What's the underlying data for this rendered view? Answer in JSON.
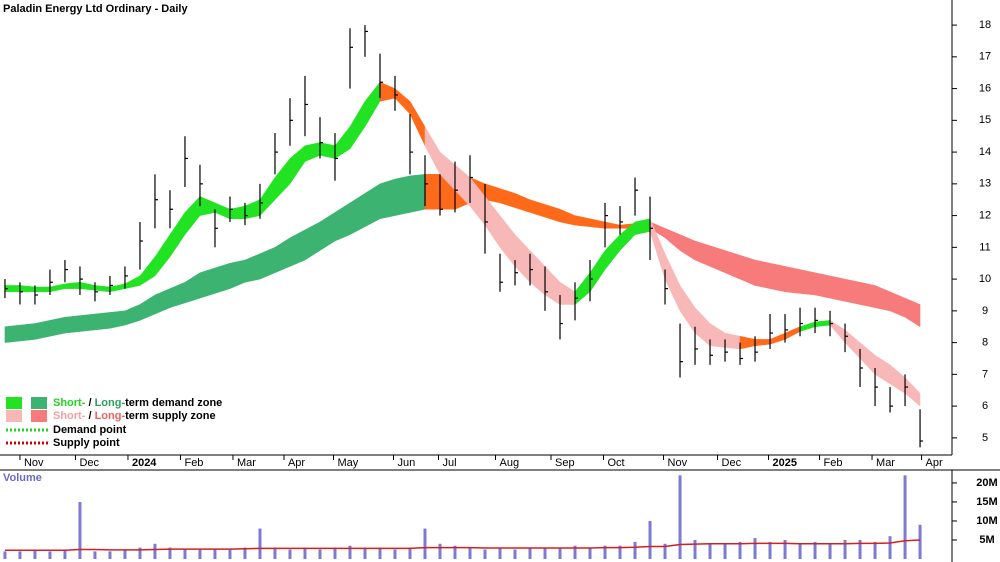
{
  "chart_data": {
    "type": "ohlc",
    "title": "Paladin Energy Ltd Ordinary - Daily",
    "xlim": [
      -0.33,
      63.13
    ],
    "xticks": [
      {
        "value": 1,
        "label": "Nov"
      },
      {
        "value": 4.7,
        "label": "Dec"
      },
      {
        "value": 8.2,
        "label": "2024"
      },
      {
        "value": 11.7,
        "label": "Feb"
      },
      {
        "value": 15.2,
        "label": "Mar"
      },
      {
        "value": 18.6,
        "label": "Apr"
      },
      {
        "value": 21.9,
        "label": "May"
      },
      {
        "value": 25.9,
        "label": "Jun"
      },
      {
        "value": 28.9,
        "label": "Jul"
      },
      {
        "value": 32.7,
        "label": "Aug"
      },
      {
        "value": 36.4,
        "label": "Sep"
      },
      {
        "value": 39.9,
        "label": "Oct"
      },
      {
        "value": 43.9,
        "label": "Nov"
      },
      {
        "value": 47.5,
        "label": "Dec"
      },
      {
        "value": 50.9,
        "label": "2025"
      },
      {
        "value": 54.3,
        "label": "Feb"
      },
      {
        "value": 57.8,
        "label": "Mar"
      },
      {
        "value": 61.1,
        "label": "Apr"
      }
    ],
    "ylim": [
      4.46,
      18.79
    ],
    "yticks": [
      5,
      6,
      7,
      8,
      9,
      10,
      11,
      12,
      13,
      14,
      15,
      16,
      17,
      18
    ],
    "color": "#000000",
    "high": [
      10.0,
      9.9,
      9.8,
      10.3,
      10.6,
      10.4,
      9.9,
      10.1,
      10.4,
      11.8,
      13.3,
      12.8,
      14.5,
      13.6,
      12.2,
      12.6,
      12.4,
      13.0,
      14.6,
      15.7,
      16.4,
      15.1,
      14.6,
      17.9,
      18.0,
      17.1,
      16.4,
      15.2,
      13.9,
      13.3,
      13.7,
      13.9,
      13.0,
      10.8,
      10.6,
      10.8,
      10.4,
      9.5,
      9.9,
      10.6,
      12.4,
      12.3,
      13.2,
      12.6,
      10.3,
      8.6,
      8.5,
      8.1,
      8.1,
      8.0,
      8.2,
      8.9,
      8.9,
      9.1,
      9.1,
      9.0,
      8.6,
      7.8,
      7.2,
      6.6,
      7.0,
      5.9
    ],
    "low": [
      9.4,
      9.2,
      9.2,
      9.5,
      9.9,
      9.5,
      9.3,
      9.5,
      9.7,
      10.3,
      11.6,
      11.6,
      12.9,
      12.3,
      11.0,
      11.8,
      11.7,
      11.9,
      13.3,
      14.2,
      14.5,
      13.8,
      13.1,
      16.0,
      17.0,
      15.7,
      15.3,
      13.3,
      12.3,
      12.0,
      12.1,
      12.4,
      10.8,
      9.6,
      9.8,
      9.8,
      9.0,
      8.1,
      8.7,
      9.3,
      11.0,
      11.4,
      12.0,
      10.6,
      9.2,
      6.9,
      7.3,
      7.3,
      7.4,
      7.3,
      7.4,
      7.8,
      8.0,
      8.2,
      8.3,
      8.2,
      7.7,
      6.6,
      6.0,
      5.8,
      6.0,
      4.7
    ],
    "close": [
      9.7,
      9.6,
      9.5,
      9.9,
      10.3,
      10.0,
      9.6,
      9.8,
      10.1,
      11.2,
      12.5,
      12.2,
      13.8,
      13.0,
      11.6,
      12.2,
      12.0,
      12.4,
      14.0,
      15.0,
      15.5,
      14.3,
      13.8,
      17.3,
      17.8,
      16.2,
      15.8,
      14.0,
      13.0,
      12.2,
      12.8,
      13.2,
      11.8,
      9.9,
      10.2,
      10.3,
      9.6,
      8.6,
      9.4,
      10.0,
      12.0,
      11.8,
      12.8,
      11.6,
      9.7,
      7.4,
      7.8,
      7.6,
      7.7,
      7.5,
      7.7,
      8.3,
      8.4,
      8.6,
      8.7,
      8.6,
      8.2,
      7.2,
      6.6,
      6.0,
      6.6,
      4.9
    ],
    "bands": [
      {
        "upper": [
          8.5,
          8.55,
          8.6,
          8.7,
          8.8,
          8.85,
          8.9,
          8.95,
          9.0,
          9.2,
          9.5,
          9.7,
          9.9,
          10.2,
          10.35,
          10.5,
          10.6,
          10.8,
          11.0,
          11.3,
          11.55,
          11.8,
          12.1,
          12.4,
          12.7,
          13.0,
          13.15,
          13.25,
          13.3,
          13.3,
          13.3,
          13.2,
          13.0,
          12.85,
          12.7,
          12.5,
          12.35,
          12.2,
          12.0,
          11.9,
          11.8,
          11.7,
          11.75,
          11.8,
          11.6,
          11.4,
          11.2,
          11.05,
          10.9,
          10.75,
          10.6,
          10.5,
          10.4,
          10.3,
          10.2,
          10.1,
          10.0,
          9.9,
          9.8,
          9.6,
          9.4,
          9.2
        ],
        "lower": [
          8.0,
          8.05,
          8.1,
          8.2,
          8.3,
          8.35,
          8.4,
          8.45,
          8.55,
          8.7,
          8.9,
          9.1,
          9.25,
          9.4,
          9.55,
          9.7,
          9.9,
          10.0,
          10.2,
          10.4,
          10.6,
          10.9,
          11.2,
          11.4,
          11.65,
          11.9,
          12.0,
          12.1,
          12.2,
          12.2,
          12.2,
          12.4,
          12.5,
          12.4,
          12.25,
          12.1,
          11.95,
          11.8,
          11.7,
          11.65,
          11.6,
          11.6,
          11.6,
          11.6,
          11.3,
          10.9,
          10.6,
          10.4,
          10.2,
          10.0,
          9.8,
          9.7,
          9.6,
          9.55,
          9.5,
          9.4,
          9.3,
          9.2,
          9.1,
          9.0,
          8.8,
          8.5
        ],
        "segments": [
          {
            "color": "#3cb371",
            "xlim": [
              0,
              28
            ]
          },
          {
            "color": "#ff6a1a",
            "xlim": [
              28,
              43
            ]
          },
          {
            "color": "#f77b7b",
            "xlim": [
              43,
              61
            ]
          }
        ]
      },
      {
        "upper": [
          9.8,
          9.8,
          9.75,
          9.75,
          9.85,
          9.9,
          9.8,
          9.75,
          9.85,
          10.1,
          10.7,
          11.4,
          12.1,
          12.6,
          12.4,
          12.2,
          12.3,
          12.5,
          13.2,
          13.8,
          14.2,
          14.3,
          14.2,
          14.8,
          15.6,
          16.2,
          16.0,
          15.6,
          14.8,
          14.0,
          13.6,
          13.2,
          12.6,
          12.0,
          11.4,
          10.9,
          10.4,
          9.9,
          9.6,
          10.2,
          10.9,
          11.4,
          11.8,
          11.9,
          10.8,
          9.8,
          9.1,
          8.6,
          8.3,
          8.2,
          8.1,
          8.1,
          8.3,
          8.5,
          8.65,
          8.7,
          8.4,
          8.0,
          7.6,
          7.3,
          6.9,
          6.4
        ],
        "lower": [
          9.6,
          9.6,
          9.6,
          9.6,
          9.7,
          9.7,
          9.65,
          9.6,
          9.7,
          9.8,
          10.1,
          10.7,
          11.4,
          12.0,
          12.1,
          11.9,
          11.9,
          12.0,
          12.5,
          13.0,
          13.7,
          13.9,
          13.8,
          14.1,
          14.8,
          15.6,
          15.7,
          15.2,
          14.2,
          13.3,
          12.8,
          12.3,
          11.7,
          11.0,
          10.4,
          9.9,
          9.5,
          9.2,
          9.2,
          9.6,
          10.3,
          10.9,
          11.4,
          11.5,
          10.0,
          9.0,
          8.3,
          7.9,
          7.85,
          7.8,
          7.9,
          7.95,
          8.1,
          8.35,
          8.5,
          8.55,
          8.0,
          7.5,
          7.0,
          6.7,
          6.4,
          6.0
        ],
        "segments": [
          {
            "color": "#22e322",
            "xlim": [
              0,
              25
            ]
          },
          {
            "color": "#ff6a1a",
            "xlim": [
              25,
              28
            ]
          },
          {
            "color": "#f9b8b8",
            "xlim": [
              28,
              38
            ]
          },
          {
            "color": "#22e322",
            "xlim": [
              38,
              43
            ]
          },
          {
            "color": "#f9b8b8",
            "xlim": [
              43,
              49
            ]
          },
          {
            "color": "#ff6a1a",
            "xlim": [
              49,
              53
            ]
          },
          {
            "color": "#22e322",
            "xlim": [
              53,
              55
            ]
          },
          {
            "color": "#f9b8b8",
            "xlim": [
              55,
              61
            ]
          }
        ]
      }
    ],
    "legend": [
      {
        "short": "Short-",
        "sep": " / ",
        "long": "Long-",
        "rest": "term demand zone"
      },
      {
        "short": "Short-",
        "sep": " / ",
        "long": "Long-",
        "rest": "term supply zone"
      },
      {
        "rest": "Demand point"
      },
      {
        "rest": "Supply point"
      }
    ],
    "volume": {
      "label": "Volume",
      "color": "#7b7bd6",
      "ma_color": "#d42020",
      "ylim": [
        0,
        23.4
      ],
      "yticks": [
        {
          "value": 5,
          "label": "5M"
        },
        {
          "value": 10,
          "label": "10M"
        },
        {
          "value": 15,
          "label": "15M"
        },
        {
          "value": 20,
          "label": "20M"
        }
      ],
      "values": [
        2,
        2,
        2.5,
        2,
        2.5,
        15,
        2,
        2,
        2.5,
        3,
        4,
        3,
        2.5,
        2.5,
        2.5,
        2.5,
        3,
        8,
        3,
        2.5,
        3,
        2.5,
        3,
        3.5,
        3,
        3,
        2.5,
        3,
        8,
        4,
        3.5,
        3,
        2.5,
        3,
        2.5,
        3,
        3,
        3,
        3.5,
        3,
        3.5,
        3.5,
        4.5,
        10,
        4,
        22,
        5,
        4,
        4,
        4.5,
        5.5,
        4.5,
        5,
        4,
        4.5,
        4,
        5,
        5,
        4.5,
        6,
        22,
        9
      ],
      "ma": [
        2.3,
        2.3,
        2.3,
        2.3,
        2.3,
        2.5,
        2.5,
        2.4,
        2.4,
        2.4,
        2.5,
        2.6,
        2.6,
        2.6,
        2.6,
        2.6,
        2.7,
        2.8,
        2.8,
        2.8,
        2.8,
        2.8,
        2.8,
        2.8,
        2.8,
        2.8,
        2.8,
        2.8,
        3.0,
        3.0,
        3.0,
        3.0,
        2.9,
        2.9,
        2.9,
        2.9,
        2.9,
        2.9,
        2.9,
        2.9,
        3.0,
        3.0,
        3.1,
        3.3,
        3.3,
        3.8,
        3.9,
        4.0,
        4.0,
        4.0,
        4.1,
        4.1,
        4.1,
        4.0,
        4.0,
        4.0,
        4.0,
        4.1,
        4.1,
        4.2,
        4.8,
        5.0
      ]
    }
  }
}
